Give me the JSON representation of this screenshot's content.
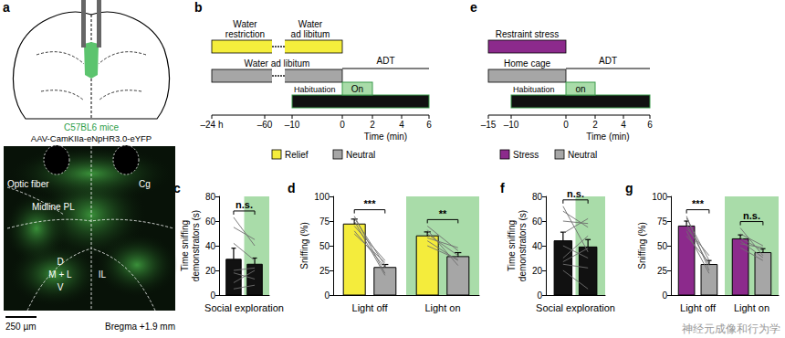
{
  "figure": {
    "panel_a": {
      "label": "a",
      "mouse": "C57BL6 mice",
      "virus": "AAV-CamKIIa-eNpHR3.0-eYFP",
      "regions": [
        "Optic fiber",
        "Cg",
        "Midline PL",
        "D",
        "M + L",
        "V",
        "IL"
      ],
      "scale_bar": "250 µm",
      "bregma": "Bregma +1.9 mm"
    },
    "panel_b": {
      "label": "b",
      "rows": [
        {
          "labels": [
            "Water\nrestriction",
            "Water\nad libitum"
          ],
          "color": "#f5ee3c"
        },
        {
          "labels": [
            "Water ad libitum"
          ],
          "color": "#a6a6a6"
        }
      ],
      "habituation": "Habituation",
      "light": "On",
      "test": "ADT",
      "ticks": [
        "–24 h",
        "–60",
        "–10",
        "0",
        "2",
        "4",
        "6"
      ],
      "axis_label": "Time (min)"
    },
    "panel_e": {
      "label": "e",
      "rows": [
        {
          "labels": [
            "Restraint stress"
          ],
          "color": "#8c2a8c"
        },
        {
          "labels": [
            "Home cage"
          ],
          "color": "#a6a6a6"
        }
      ],
      "habituation": "Habituation",
      "light": "on",
      "test": "ADT",
      "ticks": [
        "–15",
        "–10",
        "0",
        "2",
        "4",
        "6"
      ],
      "axis_label": "Time (min)"
    },
    "watermark": "神经元成像和行为学"
  },
  "chart_data": [
    {
      "type": "bar",
      "title": "c",
      "ylabel": "Time sniffing\ndemonstrators (s)",
      "categories": [
        "Social exploration"
      ],
      "ylim": [
        0,
        80
      ],
      "yticks": [
        0,
        20,
        40,
        60,
        80
      ],
      "grid": false,
      "series": [
        {
          "color": "#111111",
          "values": [
            29
          ],
          "errors": [
            9
          ]
        },
        {
          "color": "#111111",
          "values": [
            25
          ],
          "errors": [
            5
          ]
        }
      ],
      "individual": [
        [
          [
            63,
            40
          ],
          [
            55,
            45
          ],
          [
            42,
            28
          ],
          [
            20,
            22
          ],
          [
            18,
            13
          ],
          [
            10,
            20
          ],
          [
            5,
            8
          ]
        ]
      ],
      "annotations": [
        {
          "text": "n.s.",
          "category": 0
        }
      ]
    },
    {
      "type": "bar",
      "title": "d",
      "ylabel": "Sniffing (%)",
      "categories": [
        "Light off",
        "Light on"
      ],
      "ylim": [
        0,
        100
      ],
      "yticks": [
        0,
        25,
        50,
        75,
        100
      ],
      "grid": false,
      "series": [
        {
          "name": "Relief",
          "color": "#f4ec3c",
          "values": [
            72,
            60
          ],
          "errors": [
            5,
            4
          ]
        },
        {
          "name": "Neutral",
          "color": "#a6a6a6",
          "values": [
            28,
            39
          ],
          "errors": [
            3,
            4
          ]
        }
      ],
      "individual": [
        [
          [
            80,
            22
          ],
          [
            78,
            30
          ],
          [
            75,
            20
          ],
          [
            70,
            35
          ],
          [
            65,
            28
          ],
          [
            62,
            33
          ]
        ],
        [
          [
            70,
            45
          ],
          [
            66,
            30
          ],
          [
            62,
            40
          ],
          [
            58,
            48
          ],
          [
            55,
            35
          ],
          [
            50,
            36
          ]
        ]
      ],
      "annotations": [
        {
          "text": "***",
          "category": 0
        },
        {
          "text": "**",
          "category": 1
        }
      ]
    },
    {
      "type": "bar",
      "title": "f",
      "ylabel": "Time sniffing\ndemonstrators (s)",
      "categories": [
        "Social exploration"
      ],
      "ylim": [
        0,
        80
      ],
      "yticks": [
        0,
        20,
        40,
        60,
        80
      ],
      "grid": false,
      "series": [
        {
          "color": "#111111",
          "values": [
            44
          ],
          "errors": [
            7
          ]
        },
        {
          "color": "#111111",
          "values": [
            39
          ],
          "errors": [
            6
          ]
        }
      ],
      "individual": [
        [
          [
            72,
            35
          ],
          [
            68,
            55
          ],
          [
            60,
            58
          ],
          [
            50,
            62
          ],
          [
            40,
            30
          ],
          [
            30,
            48
          ],
          [
            25,
            22
          ],
          [
            20,
            5
          ],
          [
            27,
            38
          ]
        ]
      ],
      "annotations": [
        {
          "text": "n.s.",
          "category": 0
        }
      ]
    },
    {
      "type": "bar",
      "title": "g",
      "ylabel": "Sniffing (%)",
      "categories": [
        "Light off",
        "Light on"
      ],
      "ylim": [
        0,
        100
      ],
      "yticks": [
        0,
        25,
        50,
        75,
        100
      ],
      "grid": false,
      "series": [
        {
          "name": "Stress",
          "color": "#8c2a8c",
          "values": [
            70,
            57
          ],
          "errors": [
            5,
            4
          ]
        },
        {
          "name": "Neutral",
          "color": "#a6a6a6",
          "values": [
            31,
            43
          ],
          "errors": [
            4,
            4
          ]
        }
      ],
      "individual": [
        [
          [
            80,
            25
          ],
          [
            78,
            35
          ],
          [
            72,
            30
          ],
          [
            68,
            40
          ],
          [
            65,
            22
          ],
          [
            60,
            33
          ]
        ],
        [
          [
            68,
            40
          ],
          [
            62,
            50
          ],
          [
            58,
            45
          ],
          [
            55,
            38
          ],
          [
            52,
            48
          ],
          [
            48,
            35
          ]
        ]
      ],
      "annotations": [
        {
          "text": "***",
          "category": 0
        },
        {
          "text": "n.s.",
          "category": 1
        }
      ]
    }
  ]
}
